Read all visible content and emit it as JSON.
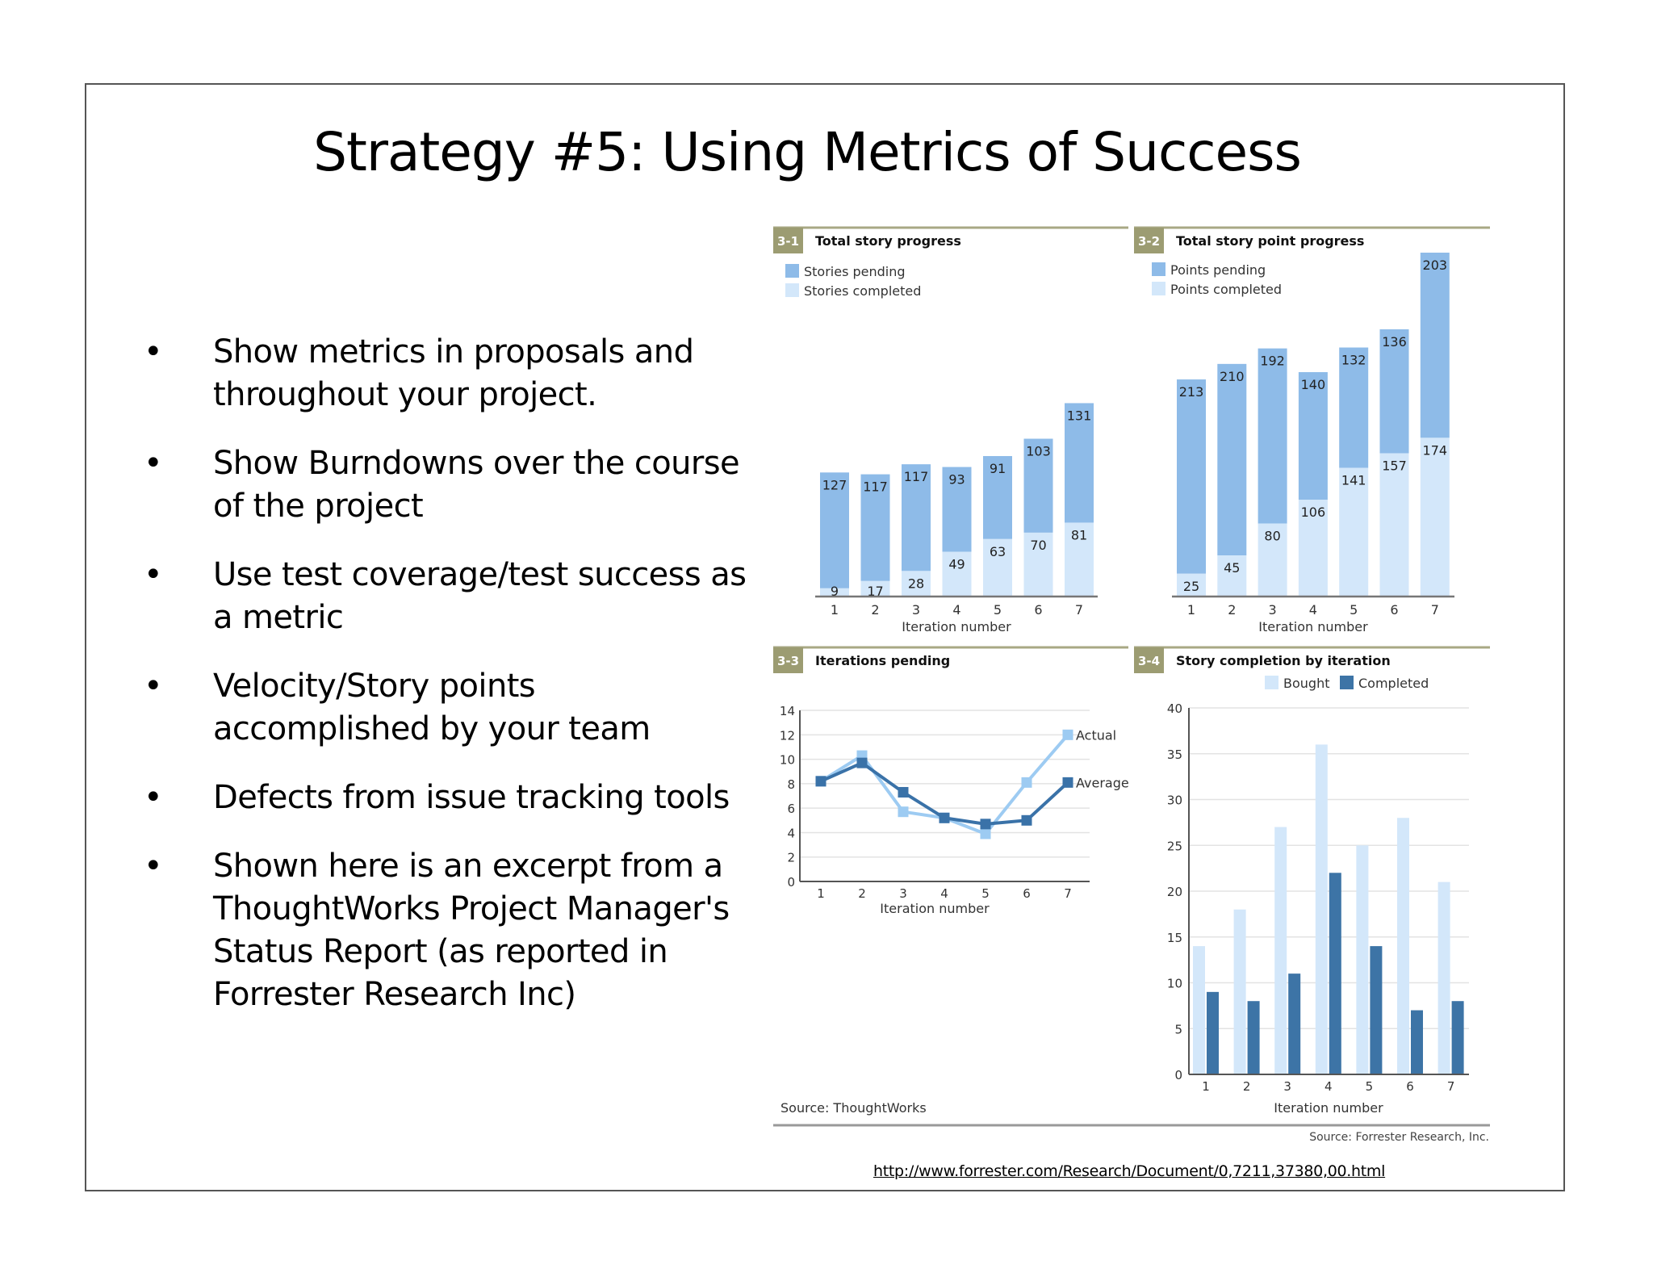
{
  "slide": {
    "title": "Strategy #5:  Using Metrics of Success",
    "bullets": [
      {
        "text": "Show metrics in proposals and throughout your project."
      },
      {
        "text": "Show Burndowns over the course of the project"
      },
      {
        "text": "Use test coverage/test success as a metric"
      },
      {
        "text": "Velocity/Story points accomplished by your team"
      },
      {
        "text": "Defects from issue tracking tools"
      },
      {
        "text": "Shown here is an excerpt from a ThoughtWorks Project Manager's Status Report (as reported in Forrester Research Inc)"
      }
    ],
    "source_left": "Source: ThoughtWorks",
    "source_right": "Source: Forrester Research, Inc.",
    "url": "http://www.forrester.com/Research/Document/0,7211,37380,00.html"
  },
  "colors": {
    "badge": "#9c9c72",
    "badge_line": "#a8a884",
    "pending": "#8ebbe8",
    "completed": "#d3e7fa",
    "actual": "#9dcbf2",
    "average": "#3a72a8",
    "bought": "#d3e7fa",
    "completed_dark": "#3d74a6",
    "axis": "#666666",
    "grid": "#e3e3e3"
  },
  "chart_data": [
    {
      "id": "3-1",
      "type": "bar",
      "stacked": true,
      "title": "Total story progress",
      "categories": [
        "1",
        "2",
        "3",
        "4",
        "5",
        "6",
        "7"
      ],
      "series": [
        {
          "name": "Stories pending",
          "values": [
            127,
            117,
            117,
            93,
            91,
            103,
            131
          ]
        },
        {
          "name": "Stories completed",
          "values": [
            9,
            17,
            28,
            49,
            63,
            70,
            81
          ]
        }
      ],
      "xlabel": "Iteration number",
      "ylabel": "",
      "data_labels": true
    },
    {
      "id": "3-2",
      "type": "bar",
      "stacked": true,
      "title": "Total story point progress",
      "categories": [
        "1",
        "2",
        "3",
        "4",
        "5",
        "6",
        "7"
      ],
      "series": [
        {
          "name": "Points pending",
          "values": [
            213,
            210,
            192,
            140,
            132,
            136,
            203
          ]
        },
        {
          "name": "Points completed",
          "values": [
            25,
            45,
            80,
            106,
            141,
            157,
            174
          ]
        }
      ],
      "xlabel": "Iteration number",
      "ylabel": "",
      "data_labels": true
    },
    {
      "id": "3-3",
      "type": "line",
      "title": "Iterations pending",
      "x": [
        "1",
        "2",
        "3",
        "4",
        "5",
        "6",
        "7"
      ],
      "series": [
        {
          "name": "Actual",
          "values": [
            8.2,
            10.3,
            5.7,
            5.2,
            3.9,
            8.1,
            12
          ]
        },
        {
          "name": "Average",
          "values": [
            8.2,
            9.7,
            7.3,
            5.2,
            4.7,
            5.0,
            8.1
          ]
        }
      ],
      "xlabel": "Iteration number",
      "ylabel": "",
      "ylim": [
        0,
        14
      ],
      "yticks": [
        0,
        2,
        4,
        6,
        8,
        10,
        12,
        14
      ],
      "grid": true,
      "source": "Source: ThoughtWorks"
    },
    {
      "id": "3-4",
      "type": "bar",
      "stacked": false,
      "title": "Story completion by iteration",
      "categories": [
        "1",
        "2",
        "3",
        "4",
        "5",
        "6",
        "7"
      ],
      "series": [
        {
          "name": "Bought",
          "values": [
            14,
            18,
            27,
            36,
            25,
            28,
            21
          ]
        },
        {
          "name": "Completed",
          "values": [
            9,
            8,
            11,
            22,
            14,
            7,
            8
          ]
        }
      ],
      "xlabel": "Iteration number",
      "ylabel": "",
      "ylim": [
        0,
        40
      ],
      "yticks": [
        0,
        5,
        10,
        15,
        20,
        25,
        30,
        35,
        40
      ],
      "grid": true,
      "legend_position": "top",
      "source": "Source: Forrester Research, Inc."
    }
  ]
}
